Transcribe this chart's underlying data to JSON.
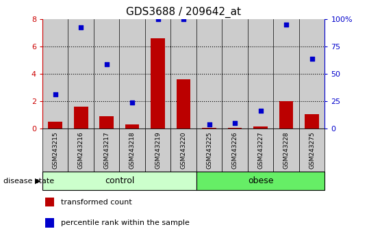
{
  "title": "GDS3688 / 209642_at",
  "samples": [
    "GSM243215",
    "GSM243216",
    "GSM243217",
    "GSM243218",
    "GSM243219",
    "GSM243220",
    "GSM243225",
    "GSM243226",
    "GSM243227",
    "GSM243228",
    "GSM243275"
  ],
  "transformed_count": [
    0.5,
    1.6,
    0.9,
    0.3,
    6.6,
    3.6,
    0.05,
    0.05,
    0.15,
    2.0,
    1.05
  ],
  "percentile_rank": [
    2.5,
    7.4,
    4.7,
    1.9,
    8.0,
    8.0,
    0.3,
    0.4,
    1.3,
    7.6,
    5.1
  ],
  "percentile_right_labels": [
    "0",
    "25",
    "50",
    "75",
    "100%"
  ],
  "percentile_right_ticks": [
    0,
    2,
    4,
    6,
    8
  ],
  "ylim": [
    0,
    8
  ],
  "yticks": [
    0,
    2,
    4,
    6,
    8
  ],
  "ytick_labels": [
    "0",
    "2",
    "4",
    "6",
    "8"
  ],
  "bar_color": "#bb0000",
  "dot_color": "#0000cc",
  "bar_width": 0.55,
  "grid_yticks": [
    2,
    4,
    6
  ],
  "control_indices": [
    0,
    1,
    2,
    3,
    4,
    5
  ],
  "obese_indices": [
    6,
    7,
    8,
    9,
    10
  ],
  "control_color": "#ccffcc",
  "obese_color": "#66ee66",
  "sample_bg_color": "#cccccc",
  "disease_label": "disease state",
  "control_label": "control",
  "obese_label": "obese",
  "legend_transformed": "transformed count",
  "legend_percentile": "percentile rank within the sample",
  "right_axis_color": "#0000cc",
  "left_axis_color": "#cc0000"
}
